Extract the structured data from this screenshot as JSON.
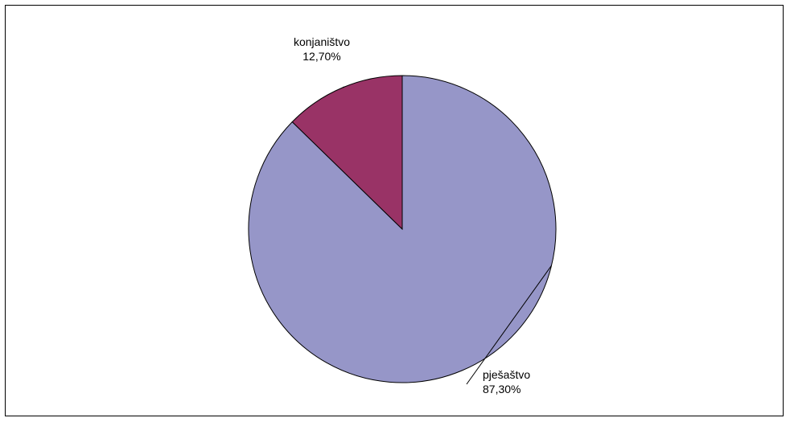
{
  "chart_data": {
    "type": "pie",
    "title": "",
    "slices": [
      {
        "name": "pješaštvo",
        "value": 87.3,
        "label": "87,30%",
        "color": "#9696c8"
      },
      {
        "name": "konjaništvo",
        "value": 12.7,
        "label": "12,70%",
        "color": "#993366"
      }
    ],
    "start_angle_deg": 0,
    "direction": "clockwise",
    "outline_color": "#000000",
    "legend": "none"
  }
}
